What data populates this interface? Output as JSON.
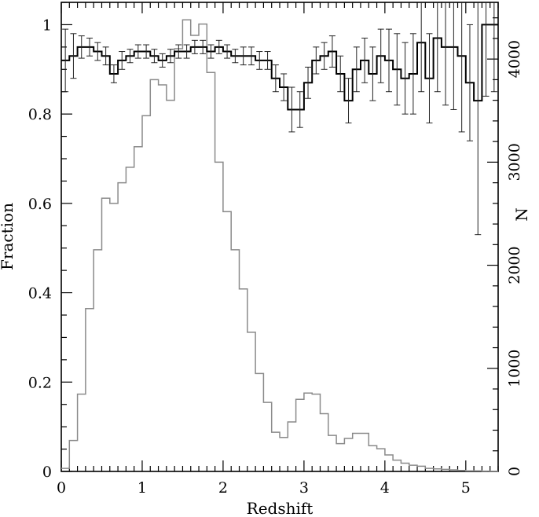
{
  "chart_data": {
    "type": "line",
    "title": "",
    "xlabel": "Redshift",
    "ylabel_left": "Fraction",
    "ylabel_right": "N",
    "xlim": [
      0,
      5.4
    ],
    "ylim_left": [
      0,
      1.05
    ],
    "ylim_right": [
      0,
      4550
    ],
    "grid": false,
    "legend": "none",
    "x_ticks": [
      0,
      1,
      2,
      3,
      4,
      5
    ],
    "x_tick_labels": [
      "0",
      "1",
      "2",
      "3",
      "4",
      "5"
    ],
    "y_left_ticks": [
      0,
      0.2,
      0.4,
      0.6,
      0.8,
      1
    ],
    "y_left_tick_labels": [
      "0",
      "0.2",
      "0.4",
      "0.6",
      "0.8",
      "1"
    ],
    "y_right_ticks": [
      0,
      1000,
      2000,
      3000,
      4000
    ],
    "y_right_tick_labels": [
      "0",
      "1000",
      "2000",
      "3000",
      "4000"
    ],
    "bin_edges": [
      0,
      0.1,
      0.2,
      0.3,
      0.4,
      0.5,
      0.6,
      0.7,
      0.8,
      0.9,
      1.0,
      1.1,
      1.2,
      1.3,
      1.4,
      1.5,
      1.6,
      1.7,
      1.8,
      1.9,
      2.0,
      2.1,
      2.2,
      2.3,
      2.4,
      2.5,
      2.6,
      2.7,
      2.8,
      2.9,
      3.0,
      3.1,
      3.2,
      3.3,
      3.4,
      3.5,
      3.6,
      3.7,
      3.8,
      3.9,
      4.0,
      4.1,
      4.2,
      4.3,
      4.4,
      4.5,
      4.6,
      4.7,
      4.8,
      4.9,
      5.0,
      5.1,
      5.2,
      5.3,
      5.4
    ],
    "series": [
      {
        "axis": "left",
        "color": "#000000",
        "style": "step-with-errorbars",
        "values": [
          0.92,
          0.93,
          0.95,
          0.95,
          0.94,
          0.93,
          0.89,
          0.92,
          0.93,
          0.94,
          0.94,
          0.93,
          0.92,
          0.93,
          0.94,
          0.94,
          0.95,
          0.95,
          0.94,
          0.95,
          0.94,
          0.93,
          0.93,
          0.93,
          0.92,
          0.92,
          0.88,
          0.86,
          0.81,
          0.81,
          0.87,
          0.92,
          0.93,
          0.94,
          0.89,
          0.83,
          0.9,
          0.92,
          0.89,
          0.93,
          0.92,
          0.9,
          0.88,
          0.89,
          0.96,
          0.88,
          0.97,
          0.95,
          0.95,
          0.93,
          0.87,
          0.83,
          1.0,
          1.0
        ],
        "error": [
          0.07,
          0.05,
          0.025,
          0.02,
          0.02,
          0.02,
          0.02,
          0.02,
          0.015,
          0.015,
          0.015,
          0.015,
          0.015,
          0.015,
          0.015,
          0.015,
          0.015,
          0.015,
          0.015,
          0.015,
          0.015,
          0.015,
          0.02,
          0.02,
          0.02,
          0.02,
          0.03,
          0.03,
          0.05,
          0.04,
          0.035,
          0.03,
          0.03,
          0.035,
          0.04,
          0.05,
          0.05,
          0.05,
          0.06,
          0.06,
          0.07,
          0.08,
          0.08,
          0.09,
          0.11,
          0.1,
          0.12,
          0.13,
          0.14,
          0.17,
          0.13,
          0.3,
          0.16,
          0.15
        ]
      },
      {
        "axis": "right",
        "color": "#8a8a8a",
        "style": "step",
        "values": [
          30,
          300,
          750,
          1580,
          2150,
          2650,
          2600,
          2800,
          2950,
          3150,
          3450,
          3800,
          3750,
          3600,
          4100,
          4380,
          4230,
          4340,
          3870,
          3000,
          2520,
          2150,
          1770,
          1350,
          950,
          670,
          380,
          330,
          480,
          700,
          760,
          750,
          560,
          350,
          270,
          320,
          370,
          370,
          250,
          220,
          160,
          110,
          80,
          60,
          50,
          30,
          25,
          20,
          15,
          10,
          5,
          5,
          3,
          2
        ]
      }
    ]
  }
}
